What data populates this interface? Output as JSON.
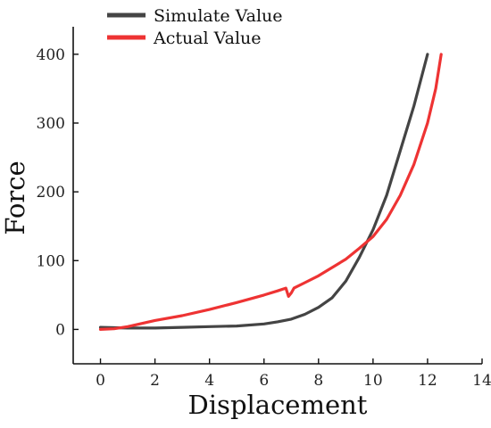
{
  "chart_data": {
    "type": "line",
    "title": "",
    "xlabel": "Displacement",
    "ylabel": "Force",
    "xlim": [
      -1,
      14
    ],
    "ylim": [
      -50,
      440
    ],
    "xticks": [
      0,
      2,
      4,
      6,
      8,
      10,
      12,
      14
    ],
    "xtick_labels": [
      "0",
      "2",
      "4",
      "6",
      "8",
      "10",
      "12",
      "14"
    ],
    "yticks": [
      0,
      100,
      200,
      300,
      400
    ],
    "ytick_labels": [
      "0",
      "100",
      "200",
      "300",
      "400"
    ],
    "grid": false,
    "legend_position": "top-left",
    "series": [
      {
        "name": "Simulate Value",
        "color": "#444444",
        "x": [
          0,
          1,
          2,
          3,
          4,
          5,
          6,
          6.5,
          7,
          7.5,
          8,
          8.5,
          9,
          9.5,
          10,
          10.5,
          11,
          11.5,
          12
        ],
        "y": [
          3,
          2,
          2,
          3,
          4,
          5,
          8,
          11,
          15,
          22,
          32,
          46,
          70,
          105,
          145,
          195,
          260,
          325,
          400
        ]
      },
      {
        "name": "Actual Value",
        "color": "#ee3333",
        "x": [
          0,
          0.5,
          1,
          2,
          3,
          4,
          5,
          6,
          6.5,
          6.8,
          6.9,
          7.0,
          7.1,
          7.5,
          8,
          8.5,
          9,
          9.5,
          10,
          10.5,
          11,
          11.5,
          12,
          12.3,
          12.5
        ],
        "y": [
          0,
          1,
          4,
          13,
          20,
          29,
          39,
          50,
          56,
          60,
          48,
          53,
          60,
          68,
          78,
          90,
          102,
          118,
          135,
          160,
          195,
          240,
          300,
          350,
          400
        ]
      }
    ]
  }
}
